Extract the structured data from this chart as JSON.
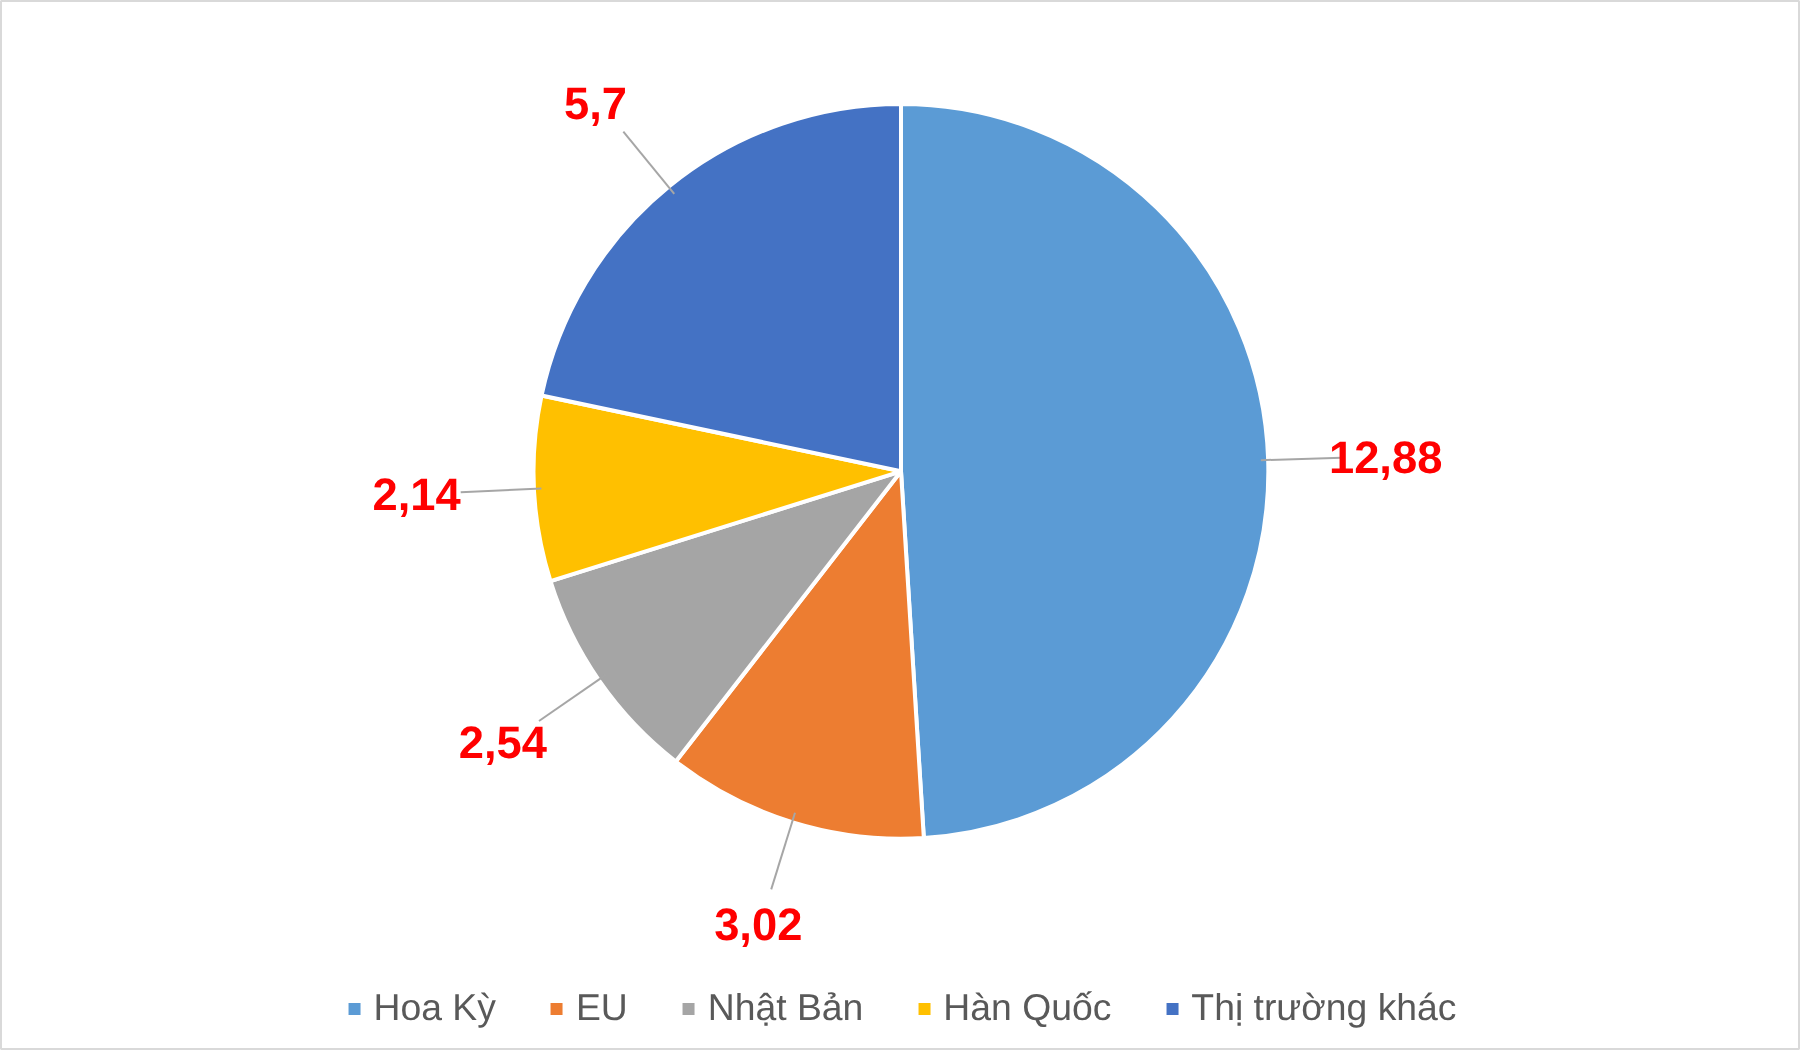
{
  "chart_data": {
    "type": "pie",
    "categories": [
      "Hoa Kỳ",
      "EU",
      "Nhật Bản",
      "Hàn Quốc",
      "Thị trường khác"
    ],
    "values": [
      12.88,
      3.02,
      2.54,
      2.14,
      5.7
    ],
    "colors": [
      "#5b9bd5",
      "#ed7d31",
      "#a5a5a5",
      "#ffc000",
      "#4472c4"
    ],
    "value_labels": [
      "12,88",
      "3,02",
      "2,54",
      "2,14",
      "5,7"
    ],
    "legend": "bottom"
  }
}
